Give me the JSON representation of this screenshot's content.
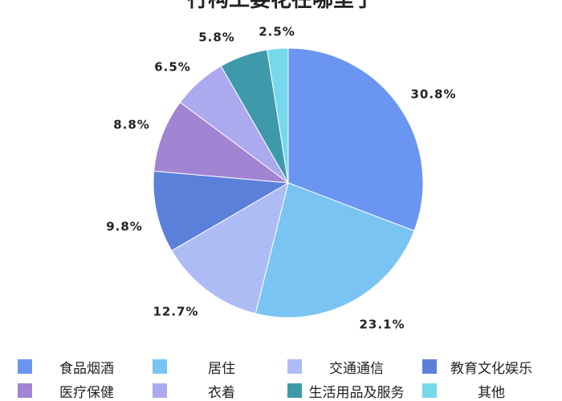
{
  "chart_data": {
    "type": "pie",
    "title": "行构工要花在哪里了",
    "categories": [
      "食品烟酒",
      "居住",
      "交通通信",
      "教育文化娱乐",
      "医疗保健",
      "衣着",
      "生活用品及服务",
      "其他"
    ],
    "values": [
      30.8,
      23.1,
      12.7,
      9.8,
      8.8,
      6.5,
      5.8,
      2.5
    ],
    "value_labels": [
      "30.8%",
      "23.1%",
      "12.7%",
      "9.8%",
      "8.8%",
      "6.5%",
      "5.8%",
      "2.5%"
    ],
    "colors": [
      "#6a96f2",
      "#79c4f2",
      "#aebcf5",
      "#5b80da",
      "#a184d2",
      "#ada9ee",
      "#3e9aab",
      "#77d8ec"
    ],
    "legend_placement": "bottom",
    "start_angle": "12 o'clock",
    "direction": "clockwise"
  }
}
